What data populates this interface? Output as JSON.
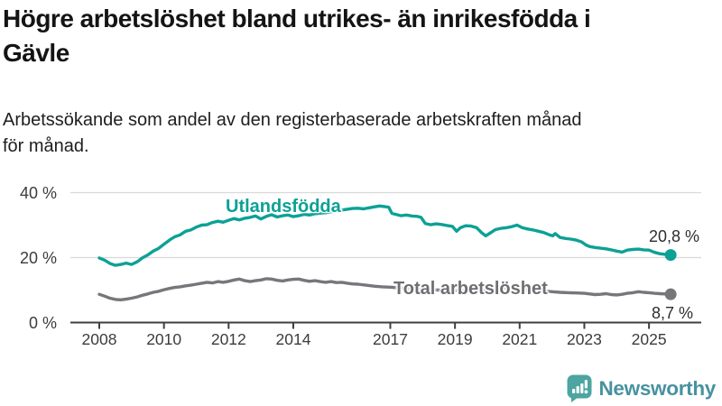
{
  "title": "Högre arbetslöshet bland utrikes- än inrikesfödda i\nGävle",
  "subtitle": "Arbetssökande som andel av den registerbaserade arbetskraften månad\nför månad.",
  "branding": {
    "logo_text": "Newsworthy",
    "icon": "newsworthy-speech-bubble-bar-chart-icon",
    "icon_color": "#4ca5a1",
    "text_color": "#4792a0"
  },
  "colors": {
    "series_foreign_born": "#0da195",
    "series_total": "#76767b",
    "gridline": "#d9d9d9",
    "axis": "#3f3f3f"
  },
  "chart_data": {
    "type": "line",
    "title": "Högre arbetslöshet bland utrikes- än inrikesfödda i Gävle",
    "subtitle": "Arbetssökande som andel av den registerbaserade arbetskraften månad för månad.",
    "xlabel": "",
    "ylabel": "",
    "grid": "horizontal",
    "legend_position": "inline-labels",
    "x_axis": {
      "ticks": [
        2008,
        2010,
        2012,
        2014,
        2017,
        2019,
        2021,
        2023,
        2025
      ],
      "range": [
        2007.9,
        2026.6
      ]
    },
    "y_axis": {
      "ticks": [
        {
          "value": 0,
          "label": "0 %"
        },
        {
          "value": 20,
          "label": "20 %"
        },
        {
          "value": 40,
          "label": "40 %"
        }
      ],
      "range": [
        0,
        43
      ]
    },
    "series": [
      {
        "name": "Utlandsfödda",
        "color": "#0da195",
        "end_value": 20.8,
        "end_label": "20,8 %",
        "points": [
          [
            2008,
            19.9
          ],
          [
            2008.17,
            19.2
          ],
          [
            2008.33,
            18.2
          ],
          [
            2008.5,
            17.6
          ],
          [
            2008.67,
            17.9
          ],
          [
            2008.83,
            18.3
          ],
          [
            2009,
            17.9
          ],
          [
            2009.17,
            18.7
          ],
          [
            2009.33,
            19.9
          ],
          [
            2009.5,
            20.8
          ],
          [
            2009.67,
            22
          ],
          [
            2009.83,
            22.8
          ],
          [
            2010,
            24.1
          ],
          [
            2010.17,
            25.4
          ],
          [
            2010.33,
            26.4
          ],
          [
            2010.5,
            27
          ],
          [
            2010.67,
            28.1
          ],
          [
            2010.83,
            28.5
          ],
          [
            2011,
            29.4
          ],
          [
            2011.17,
            30
          ],
          [
            2011.33,
            30.1
          ],
          [
            2011.5,
            30.8
          ],
          [
            2011.67,
            31.2
          ],
          [
            2011.83,
            30.9
          ],
          [
            2012,
            31.5
          ],
          [
            2012.17,
            32
          ],
          [
            2012.33,
            31.6
          ],
          [
            2012.5,
            32.1
          ],
          [
            2012.67,
            32.4
          ],
          [
            2012.83,
            32.8
          ],
          [
            2013,
            31.9
          ],
          [
            2013.17,
            32.7
          ],
          [
            2013.33,
            33.2
          ],
          [
            2013.5,
            32.5
          ],
          [
            2013.67,
            32.9
          ],
          [
            2013.83,
            33.1
          ],
          [
            2014,
            32.6
          ],
          [
            2014.17,
            32.9
          ],
          [
            2014.33,
            33.3
          ],
          [
            2014.5,
            33.1
          ],
          [
            2014.67,
            33.5
          ],
          [
            2014.83,
            33.7
          ],
          [
            2015,
            33.8
          ],
          [
            2015.17,
            34.1
          ],
          [
            2015.33,
            34.3
          ],
          [
            2015.5,
            34.6
          ],
          [
            2015.67,
            34.9
          ],
          [
            2015.83,
            35.1
          ],
          [
            2016,
            35.2
          ],
          [
            2016.17,
            35
          ],
          [
            2016.33,
            35.3
          ],
          [
            2016.5,
            35.6
          ],
          [
            2016.67,
            35.9
          ],
          [
            2016.83,
            35.7
          ],
          [
            2016.95,
            35.5
          ],
          [
            2017.05,
            33.6
          ],
          [
            2017.17,
            33.3
          ],
          [
            2017.33,
            32.9
          ],
          [
            2017.5,
            33.1
          ],
          [
            2017.67,
            32.8
          ],
          [
            2017.83,
            32.7
          ],
          [
            2017.95,
            32.4
          ],
          [
            2018.08,
            30.5
          ],
          [
            2018.25,
            30.1
          ],
          [
            2018.42,
            30.4
          ],
          [
            2018.58,
            30.2
          ],
          [
            2018.75,
            29.9
          ],
          [
            2018.92,
            29.6
          ],
          [
            2019.05,
            28.1
          ],
          [
            2019.17,
            29.2
          ],
          [
            2019.33,
            29.8
          ],
          [
            2019.5,
            29.7
          ],
          [
            2019.67,
            29.2
          ],
          [
            2019.83,
            27.6
          ],
          [
            2019.95,
            26.7
          ],
          [
            2020.08,
            27.5
          ],
          [
            2020.25,
            28.6
          ],
          [
            2020.42,
            29
          ],
          [
            2020.58,
            29.2
          ],
          [
            2020.75,
            29.5
          ],
          [
            2020.92,
            30
          ],
          [
            2021.08,
            29.2
          ],
          [
            2021.25,
            28.8
          ],
          [
            2021.42,
            28.5
          ],
          [
            2021.58,
            28.1
          ],
          [
            2021.75,
            27.7
          ],
          [
            2021.92,
            27
          ],
          [
            2022.02,
            26.7
          ],
          [
            2022.1,
            27.4
          ],
          [
            2022.25,
            26.2
          ],
          [
            2022.42,
            25.9
          ],
          [
            2022.58,
            25.7
          ],
          [
            2022.75,
            25.4
          ],
          [
            2022.92,
            24.8
          ],
          [
            2023.05,
            23.9
          ],
          [
            2023.17,
            23.4
          ],
          [
            2023.33,
            23.1
          ],
          [
            2023.5,
            22.9
          ],
          [
            2023.67,
            22.7
          ],
          [
            2023.83,
            22.4
          ],
          [
            2024,
            22
          ],
          [
            2024.17,
            21.7
          ],
          [
            2024.33,
            22.3
          ],
          [
            2024.5,
            22.5
          ],
          [
            2024.67,
            22.6
          ],
          [
            2024.83,
            22.4
          ],
          [
            2025,
            22.3
          ],
          [
            2025.17,
            21.6
          ],
          [
            2025.33,
            21.2
          ],
          [
            2025.5,
            21
          ],
          [
            2025.67,
            20.8
          ]
        ]
      },
      {
        "name": "Total arbetslöshet",
        "color": "#76767b",
        "end_value": 8.7,
        "end_label": "8,7 %",
        "points": [
          [
            2008,
            8.7
          ],
          [
            2008.17,
            8.1
          ],
          [
            2008.33,
            7.5
          ],
          [
            2008.5,
            7.1
          ],
          [
            2008.67,
            7
          ],
          [
            2008.83,
            7.2
          ],
          [
            2009,
            7.5
          ],
          [
            2009.17,
            7.9
          ],
          [
            2009.33,
            8.4
          ],
          [
            2009.5,
            8.8
          ],
          [
            2009.67,
            9.3
          ],
          [
            2009.83,
            9.6
          ],
          [
            2010,
            10.1
          ],
          [
            2010.17,
            10.5
          ],
          [
            2010.33,
            10.8
          ],
          [
            2010.5,
            11
          ],
          [
            2010.67,
            11.3
          ],
          [
            2010.83,
            11.5
          ],
          [
            2011,
            11.8
          ],
          [
            2011.17,
            12.1
          ],
          [
            2011.33,
            12.4
          ],
          [
            2011.5,
            12.2
          ],
          [
            2011.67,
            12.6
          ],
          [
            2011.83,
            12.4
          ],
          [
            2012,
            12.7
          ],
          [
            2012.17,
            13.1
          ],
          [
            2012.33,
            13.4
          ],
          [
            2012.5,
            12.9
          ],
          [
            2012.67,
            12.6
          ],
          [
            2012.83,
            12.9
          ],
          [
            2013,
            13.1
          ],
          [
            2013.17,
            13.5
          ],
          [
            2013.33,
            13.4
          ],
          [
            2013.5,
            13
          ],
          [
            2013.67,
            12.8
          ],
          [
            2013.83,
            13.1
          ],
          [
            2014,
            13.3
          ],
          [
            2014.17,
            13.4
          ],
          [
            2014.33,
            13
          ],
          [
            2014.5,
            12.7
          ],
          [
            2014.67,
            12.9
          ],
          [
            2014.83,
            12.6
          ],
          [
            2015,
            12.4
          ],
          [
            2015.17,
            12.6
          ],
          [
            2015.33,
            12.3
          ],
          [
            2015.5,
            12.4
          ],
          [
            2015.67,
            12.1
          ],
          [
            2015.83,
            11.9
          ],
          [
            2016,
            11.8
          ],
          [
            2016.25,
            11.5
          ],
          [
            2016.5,
            11.2
          ],
          [
            2016.75,
            11
          ],
          [
            2017,
            10.9
          ],
          [
            2017.25,
            10.7
          ],
          [
            2017.5,
            10.5
          ],
          [
            2017.75,
            10.3
          ],
          [
            2018,
            10.2
          ],
          [
            2018.25,
            10.1
          ],
          [
            2018.5,
            10
          ],
          [
            2018.75,
            9.9
          ],
          [
            2019,
            9.8
          ],
          [
            2019.25,
            9.9
          ],
          [
            2019.5,
            9.8
          ],
          [
            2019.75,
            9.7
          ],
          [
            2020,
            9.8
          ],
          [
            2020.25,
            10.3
          ],
          [
            2020.5,
            10.6
          ],
          [
            2020.75,
            10.7
          ],
          [
            2021,
            10.5
          ],
          [
            2021.25,
            10.2
          ],
          [
            2021.5,
            10
          ],
          [
            2021.75,
            9.7
          ],
          [
            2022,
            9.5
          ],
          [
            2022.25,
            9.3
          ],
          [
            2022.5,
            9.2
          ],
          [
            2022.75,
            9.1
          ],
          [
            2023,
            9
          ],
          [
            2023.17,
            8.8
          ],
          [
            2023.33,
            8.6
          ],
          [
            2023.5,
            8.7
          ],
          [
            2023.67,
            8.9
          ],
          [
            2023.83,
            8.6
          ],
          [
            2024,
            8.5
          ],
          [
            2024.17,
            8.7
          ],
          [
            2024.33,
            9
          ],
          [
            2024.5,
            9.2
          ],
          [
            2024.67,
            9.5
          ],
          [
            2024.83,
            9.3
          ],
          [
            2025,
            9.2
          ],
          [
            2025.17,
            9
          ],
          [
            2025.33,
            8.9
          ],
          [
            2025.5,
            8.8
          ],
          [
            2025.67,
            8.7
          ]
        ]
      }
    ]
  }
}
